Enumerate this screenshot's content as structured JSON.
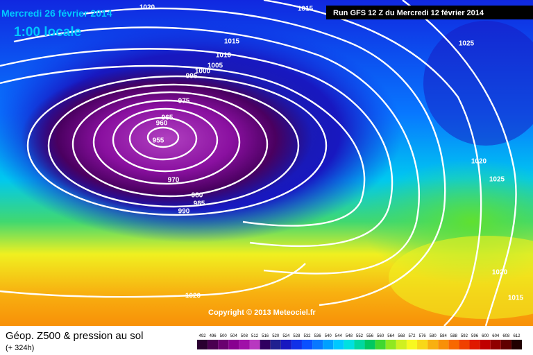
{
  "header": {
    "date": "Mercredi 26 février 2014",
    "time": "1:00 locale",
    "run": "Run GFS 12 Z du Mercredi 12 février 2014"
  },
  "isobar_labels": [
    "1020",
    "1015",
    "1015",
    "1010",
    "1005",
    "1000",
    "995",
    "975",
    "965",
    "960",
    "955",
    "970",
    "980",
    "985",
    "990",
    "1025",
    "1020",
    "1025",
    "1020",
    "1015",
    "1020"
  ],
  "copyright": "Copyright © 2013 Meteociel.fr",
  "footer": {
    "title": "Géop. Z500 & pression au sol",
    "lead": "(+ 324h)"
  },
  "legend": {
    "values": [
      492,
      496,
      500,
      504,
      508,
      512,
      516,
      520,
      524,
      528,
      532,
      536,
      540,
      544,
      548,
      552,
      556,
      560,
      564,
      568,
      572,
      576,
      580,
      584,
      588,
      592,
      596,
      600,
      604,
      608,
      612
    ],
    "colors": [
      "#2a0030",
      "#4a0050",
      "#6a0070",
      "#880090",
      "#a010a8",
      "#b838c0",
      "#300060",
      "#202090",
      "#1818c0",
      "#1030e8",
      "#0a50ff",
      "#0878ff",
      "#00a0ff",
      "#00c8ff",
      "#00e0e0",
      "#00d8a0",
      "#00c860",
      "#40d830",
      "#90e820",
      "#d0f020",
      "#f8f820",
      "#f8d818",
      "#f8b010",
      "#f89008",
      "#f86800",
      "#f04000",
      "#e01800",
      "#c00000",
      "#900000",
      "#600000",
      "#200000"
    ]
  }
}
